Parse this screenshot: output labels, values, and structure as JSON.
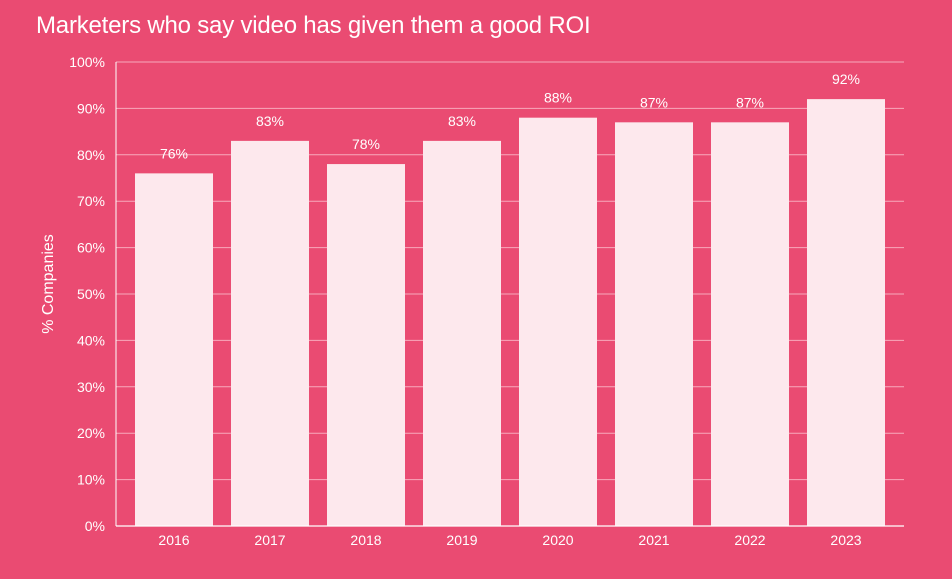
{
  "chart_data": {
    "type": "bar",
    "title": "Marketers who say video has given them a good ROI",
    "xlabel": "",
    "ylabel": "% Companies",
    "categories": [
      "2016",
      "2017",
      "2018",
      "2019",
      "2020",
      "2021",
      "2022",
      "2023"
    ],
    "values": [
      76,
      83,
      78,
      83,
      88,
      87,
      87,
      92
    ],
    "data_labels": [
      "76%",
      "83%",
      "78%",
      "83%",
      "88%",
      "87%",
      "87%",
      "92%"
    ],
    "ylim": [
      0,
      100
    ],
    "yticks": [
      0,
      10,
      20,
      30,
      40,
      50,
      60,
      70,
      80,
      90,
      100
    ],
    "ytick_labels": [
      "0%",
      "10%",
      "20%",
      "30%",
      "40%",
      "50%",
      "60%",
      "70%",
      "80%",
      "90%",
      "100%"
    ],
    "grid": true,
    "legend": "none",
    "colors": {
      "background": "#ea4b72",
      "bar": "#fde8ed",
      "text": "#ffffff",
      "grid": "#f7a9bc"
    }
  }
}
